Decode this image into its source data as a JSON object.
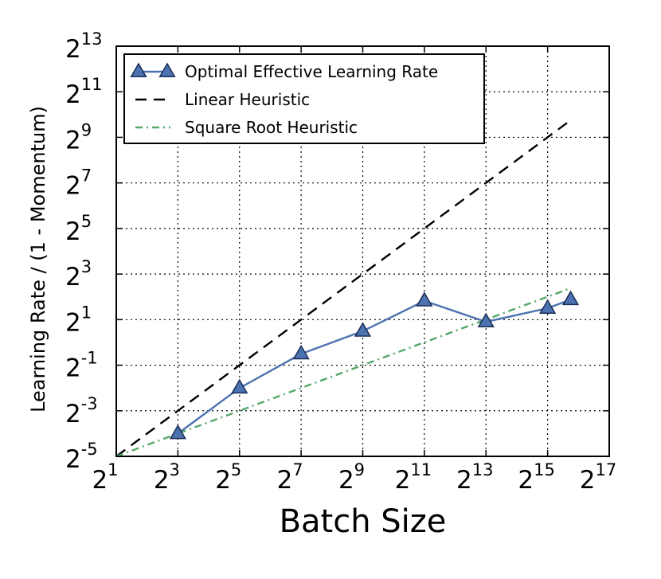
{
  "chart_data": {
    "type": "line",
    "xlabel": "Batch Size",
    "ylabel": "Learning Rate / (1 - Momentum)",
    "x_scale": "log2",
    "y_scale": "log2",
    "xlim": [
      2,
      131072
    ],
    "ylim": [
      0.03125,
      8192
    ],
    "x_ticks": [
      {
        "base": "2",
        "exp": "1"
      },
      {
        "base": "2",
        "exp": "3"
      },
      {
        "base": "2",
        "exp": "5"
      },
      {
        "base": "2",
        "exp": "7"
      },
      {
        "base": "2",
        "exp": "9"
      },
      {
        "base": "2",
        "exp": "11"
      },
      {
        "base": "2",
        "exp": "13"
      },
      {
        "base": "2",
        "exp": "15"
      },
      {
        "base": "2",
        "exp": "17"
      }
    ],
    "y_ticks": [
      {
        "base": "2",
        "exp": "-5"
      },
      {
        "base": "2",
        "exp": "-3"
      },
      {
        "base": "2",
        "exp": "-1"
      },
      {
        "base": "2",
        "exp": "1"
      },
      {
        "base": "2",
        "exp": "3"
      },
      {
        "base": "2",
        "exp": "5"
      },
      {
        "base": "2",
        "exp": "7"
      },
      {
        "base": "2",
        "exp": "9"
      },
      {
        "base": "2",
        "exp": "11"
      },
      {
        "base": "2",
        "exp": "13"
      }
    ],
    "grid": true,
    "legend_position": "top-left",
    "series": [
      {
        "name": "Optimal Effective Learning Rate",
        "style": "solid-triangle-markers",
        "color": "#4c72b0",
        "x": [
          8,
          32,
          128,
          512,
          2048,
          8192,
          32768,
          55000
        ],
        "y": [
          0.0625,
          0.25,
          0.707,
          1.41,
          3.54,
          1.87,
          2.83,
          3.68
        ]
      },
      {
        "name": "Linear Heuristic",
        "style": "dashed",
        "color": "#000000",
        "x": [
          2,
          55000
        ],
        "y": [
          0.03125,
          860
        ]
      },
      {
        "name": "Square Root Heuristic",
        "style": "dash-dot",
        "color": "#55a868",
        "x": [
          2,
          55000
        ],
        "y": [
          0.03125,
          5.2
        ]
      }
    ]
  }
}
